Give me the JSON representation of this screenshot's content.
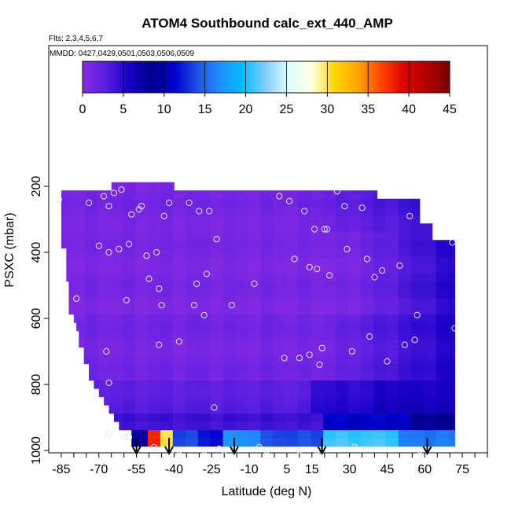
{
  "chart_data": {
    "type": "heatmap",
    "title": "ATOM4 Southbound calc_ext_440_AMP",
    "flights_note": "Flts: 2,3,4,5,6,7",
    "dates_note": "MMDD: 0427,0429,0501,0503,0506,0509",
    "xlabel": "Latitude (deg N)",
    "ylabel": "PSXC (mbar)",
    "xlim": [
      -90,
      85
    ],
    "ylim": [
      1000,
      0
    ],
    "x_tick_labels": [
      "-85",
      "-70",
      "-55",
      "-40",
      "-25",
      "-10",
      "5",
      "15",
      "30",
      "45",
      "60",
      "75"
    ],
    "y_tick_labels": [
      "200",
      "400",
      "600",
      "800",
      "1000"
    ],
    "colorbar": {
      "range": [
        0,
        45
      ],
      "tick_labels": [
        "0",
        "5",
        "10",
        "15",
        "20",
        "25",
        "30",
        "35",
        "40",
        "45"
      ],
      "colors": [
        "#8a2be2",
        "#5a1ee0",
        "#1a00c8",
        "#00008b",
        "#0000cd",
        "#1e50e6",
        "#1e90ff",
        "#00bfff",
        "#87cefa",
        "#e0ffff",
        "#ffffe0",
        "#ffd700",
        "#ffa500",
        "#ff4500",
        "#e00000",
        "#b00000",
        "#7a0000"
      ]
    },
    "grid": false,
    "field": {
      "columns_lat": [
        -83,
        -78,
        -73,
        -68,
        -63,
        -58,
        -53,
        -48,
        -43,
        -38,
        -33,
        -28,
        -23,
        -18,
        -13,
        -8,
        -3,
        2,
        7,
        12,
        17,
        22,
        27,
        32,
        37,
        42,
        47,
        52,
        57,
        62,
        67,
        72
      ],
      "rows_p": [
        975,
        950,
        925,
        900,
        875,
        850,
        825,
        800,
        775,
        750,
        725,
        700,
        675,
        650,
        625,
        600,
        575,
        550,
        525,
        500,
        475,
        450,
        425,
        400,
        375,
        350,
        325,
        300,
        275,
        250,
        225,
        200
      ],
      "valid_lat_ranges_by_row": [
        [
          -57,
          72
        ],
        [
          -57,
          72
        ],
        [
          -62,
          72
        ],
        [
          -64,
          72
        ],
        [
          -66,
          72
        ],
        [
          -68,
          72
        ],
        [
          -70,
          72
        ],
        [
          -72,
          72
        ],
        [
          -74,
          72
        ],
        [
          -74,
          72
        ],
        [
          -76,
          72
        ],
        [
          -76,
          72
        ],
        [
          -78,
          72
        ],
        [
          -78,
          72
        ],
        [
          -79,
          72
        ],
        [
          -80,
          72
        ],
        [
          -82,
          72
        ],
        [
          -82,
          72
        ],
        [
          -82,
          72
        ],
        [
          -82,
          72
        ],
        [
          -83,
          72
        ],
        [
          -83,
          72
        ],
        [
          -83,
          72
        ],
        [
          -83,
          72
        ],
        [
          -85,
          72
        ],
        [
          -85,
          63
        ],
        [
          -85,
          63
        ],
        [
          -85,
          58
        ],
        [
          -85,
          58
        ],
        [
          -85,
          58
        ],
        [
          -85,
          41
        ],
        [
          -65,
          -40
        ]
      ]
    },
    "observation_points": [
      [
        -86,
        240
      ],
      [
        -79,
        540
      ],
      [
        -74,
        250
      ],
      [
        -70,
        380
      ],
      [
        -68,
        230
      ],
      [
        -67,
        700
      ],
      [
        -66,
        260
      ],
      [
        -66,
        400
      ],
      [
        -66,
        795
      ],
      [
        -66,
        950
      ],
      [
        -64,
        220
      ],
      [
        -62,
        390
      ],
      [
        -61,
        210
      ],
      [
        -60,
        960
      ],
      [
        -59,
        545
      ],
      [
        -58,
        375
      ],
      [
        -58,
        960
      ],
      [
        -57,
        285
      ],
      [
        -54,
        270
      ],
      [
        -53,
        260
      ],
      [
        -51,
        410
      ],
      [
        -50,
        480
      ],
      [
        -48,
        990
      ],
      [
        -47,
        400
      ],
      [
        -46,
        510
      ],
      [
        -46,
        680
      ],
      [
        -45,
        560
      ],
      [
        -44,
        290
      ],
      [
        -42,
        250
      ],
      [
        -41,
        1000
      ],
      [
        -38,
        670
      ],
      [
        -38,
        1000
      ],
      [
        -34,
        250
      ],
      [
        -32,
        560
      ],
      [
        -31,
        495
      ],
      [
        -30,
        275
      ],
      [
        -28,
        590
      ],
      [
        -28,
        1000
      ],
      [
        -27,
        465
      ],
      [
        -26,
        275
      ],
      [
        -24,
        870
      ],
      [
        -23,
        360
      ],
      [
        -22,
        995
      ],
      [
        -20,
        1000
      ],
      [
        -17,
        560
      ],
      [
        -8,
        495
      ],
      [
        -3,
        1000
      ],
      [
        -6,
        990
      ],
      [
        2,
        230
      ],
      [
        4,
        720
      ],
      [
        6,
        245
      ],
      [
        8,
        420
      ],
      [
        10,
        720
      ],
      [
        10,
        1000
      ],
      [
        12,
        275
      ],
      [
        14,
        445
      ],
      [
        14,
        710
      ],
      [
        16,
        330
      ],
      [
        17,
        450
      ],
      [
        17,
        1000
      ],
      [
        18,
        740
      ],
      [
        19,
        690
      ],
      [
        20,
        330
      ],
      [
        21,
        330
      ],
      [
        22,
        470
      ],
      [
        25,
        215
      ],
      [
        28,
        260
      ],
      [
        29,
        390
      ],
      [
        31,
        700
      ],
      [
        32,
        990
      ],
      [
        35,
        265
      ],
      [
        37,
        420
      ],
      [
        38,
        655
      ],
      [
        40,
        475
      ],
      [
        43,
        455
      ],
      [
        45,
        730
      ],
      [
        50,
        440
      ],
      [
        52,
        680
      ],
      [
        54,
        290
      ],
      [
        56,
        665
      ],
      [
        57,
        590
      ],
      [
        58,
        1000
      ],
      [
        71,
        370
      ],
      [
        72,
        630
      ],
      [
        73,
        995
      ]
    ],
    "arrow_markers_lat": [
      -55,
      -42,
      -16,
      19,
      61
    ],
    "mbar_axis_side": "left",
    "colorbar_position": "top"
  }
}
